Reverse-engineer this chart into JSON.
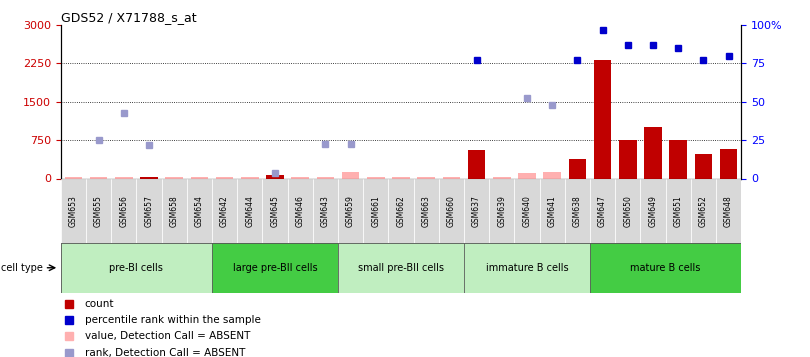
{
  "title": "GDS52 / X71788_s_at",
  "samples": [
    "GSM653",
    "GSM655",
    "GSM656",
    "GSM657",
    "GSM658",
    "GSM654",
    "GSM642",
    "GSM644",
    "GSM645",
    "GSM646",
    "GSM643",
    "GSM659",
    "GSM661",
    "GSM662",
    "GSM663",
    "GSM660",
    "GSM637",
    "GSM639",
    "GSM640",
    "GSM641",
    "GSM638",
    "GSM647",
    "GSM650",
    "GSM649",
    "GSM651",
    "GSM652",
    "GSM648"
  ],
  "cell_groups": [
    {
      "label": "pre-BI cells",
      "start": 0,
      "end": 5,
      "color": "#c0eec0"
    },
    {
      "label": "large pre-BII cells",
      "start": 6,
      "end": 10,
      "color": "#44cc44"
    },
    {
      "label": "small pre-BII cells",
      "start": 11,
      "end": 15,
      "color": "#c0eec0"
    },
    {
      "label": "immature B cells",
      "start": 16,
      "end": 20,
      "color": "#c0eec0"
    },
    {
      "label": "mature B cells",
      "start": 21,
      "end": 26,
      "color": "#44cc44"
    }
  ],
  "count_values": [
    null,
    null,
    null,
    30,
    null,
    null,
    null,
    null,
    60,
    null,
    null,
    null,
    null,
    null,
    null,
    null,
    550,
    null,
    null,
    null,
    390,
    2320,
    750,
    1000,
    750,
    480,
    570
  ],
  "count_absent": [
    30,
    30,
    30,
    null,
    30,
    30,
    30,
    30,
    null,
    30,
    30,
    120,
    30,
    30,
    30,
    30,
    null,
    30,
    100,
    120,
    null,
    null,
    null,
    null,
    null,
    null,
    null
  ],
  "rank_values": [
    null,
    null,
    null,
    null,
    null,
    null,
    null,
    null,
    null,
    null,
    null,
    null,
    null,
    null,
    null,
    null,
    2320,
    null,
    null,
    null,
    2320,
    2900,
    2600,
    2600,
    2550,
    2320,
    2400
  ],
  "rank_absent": [
    null,
    750,
    1280,
    660,
    null,
    null,
    null,
    null,
    110,
    null,
    670,
    680,
    null,
    null,
    null,
    null,
    null,
    null,
    1580,
    1430,
    null,
    null,
    null,
    null,
    null,
    null,
    null
  ],
  "ylim_left": [
    0,
    3000
  ],
  "ylim_right": [
    0,
    100
  ],
  "yticks_left": [
    0,
    750,
    1500,
    2250,
    3000
  ],
  "yticks_right": [
    0,
    25,
    50,
    75,
    100
  ],
  "ytick_labels_left": [
    "0",
    "750",
    "1500",
    "2250",
    "3000"
  ],
  "ytick_labels_right": [
    "0",
    "25",
    "50",
    "75",
    "100%"
  ],
  "bar_color": "#c00000",
  "absent_bar_color": "#ffb0b0",
  "rank_color": "#0000cc",
  "rank_absent_color": "#9999cc",
  "bg_gray": "#d8d8d8",
  "legend_items": [
    {
      "color": "#c00000",
      "label": "count",
      "marker": "s"
    },
    {
      "color": "#0000cc",
      "label": "percentile rank within the sample",
      "marker": "s"
    },
    {
      "color": "#ffb0b0",
      "label": "value, Detection Call = ABSENT",
      "marker": "s"
    },
    {
      "color": "#9999cc",
      "label": "rank, Detection Call = ABSENT",
      "marker": "s"
    }
  ]
}
